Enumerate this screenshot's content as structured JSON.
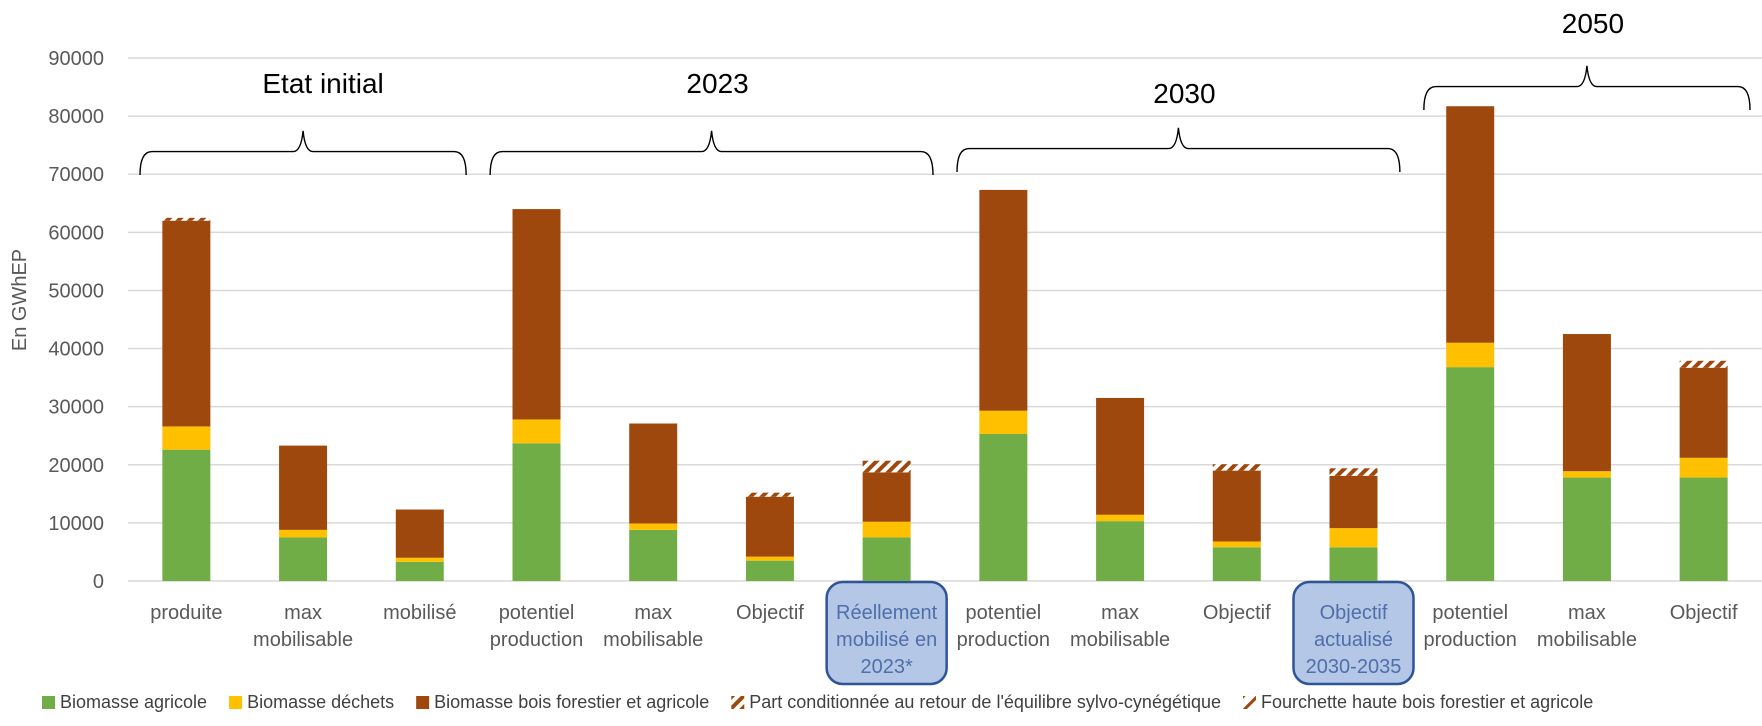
{
  "chart_data": {
    "type": "bar",
    "stacked": true,
    "ylabel": "En GWhEP",
    "ylim": [
      0,
      90000
    ],
    "yticks": [
      0,
      10000,
      20000,
      30000,
      40000,
      50000,
      60000,
      70000,
      80000,
      90000
    ],
    "grid": true,
    "legend_position": "bottom",
    "categories": [
      [
        "produite"
      ],
      [
        "max",
        "mobilisable"
      ],
      [
        "mobilisé"
      ],
      [
        "potentiel",
        "production"
      ],
      [
        "max",
        "mobilisable"
      ],
      [
        "Objectif"
      ],
      [
        "Réellement",
        "mobilisé en",
        "2023*"
      ],
      [
        "potentiel",
        "production"
      ],
      [
        "max",
        "mobilisable"
      ],
      [
        "Objectif"
      ],
      [
        "Objectif",
        "actualisé",
        "2030-2035"
      ],
      [
        "potentiel",
        "production"
      ],
      [
        "max",
        "mobilisable"
      ],
      [
        "Objectif"
      ]
    ],
    "highlighted_categories": [
      6,
      10
    ],
    "groups": [
      {
        "label": "Etat initial",
        "start": 0,
        "end": 2
      },
      {
        "label": "2023",
        "start": 3,
        "end": 6
      },
      {
        "label": "2030",
        "start": 7,
        "end": 10
      },
      {
        "label": "2050",
        "start": 11,
        "end": 13
      }
    ],
    "series": [
      {
        "name": "Biomasse agricole",
        "color": "#70ad47",
        "values": [
          22600,
          7500,
          3300,
          23700,
          8800,
          3500,
          7500,
          25300,
          10300,
          5800,
          5800,
          36800,
          17800,
          17800
        ]
      },
      {
        "name": "Biomasse déchets",
        "color": "#ffc000",
        "values": [
          4000,
          1300,
          700,
          4100,
          1100,
          700,
          2700,
          4000,
          1100,
          1000,
          3300,
          4200,
          1100,
          3400
        ]
      },
      {
        "name": "Biomasse bois forestier et agricole",
        "color": "#9e480e",
        "values": [
          35400,
          14500,
          8300,
          36200,
          17200,
          10300,
          8500,
          38000,
          20100,
          12200,
          9000,
          40700,
          23600,
          15500
        ]
      },
      {
        "name": "Part conditionnée au retour de l'équilibre sylvo-cynégétique",
        "color": "#9e480e",
        "pattern": "hatch",
        "values": [
          500,
          0,
          0,
          0,
          0,
          700,
          2000,
          0,
          0,
          1100,
          1300,
          0,
          0,
          1200
        ]
      },
      {
        "name": "Fourchette haute bois forestier et agricole",
        "color": "#9e480e",
        "pattern": "hatch-light",
        "values": [
          0,
          0,
          0,
          0,
          0,
          0,
          0,
          0,
          0,
          0,
          0,
          0,
          0,
          0
        ]
      }
    ]
  }
}
